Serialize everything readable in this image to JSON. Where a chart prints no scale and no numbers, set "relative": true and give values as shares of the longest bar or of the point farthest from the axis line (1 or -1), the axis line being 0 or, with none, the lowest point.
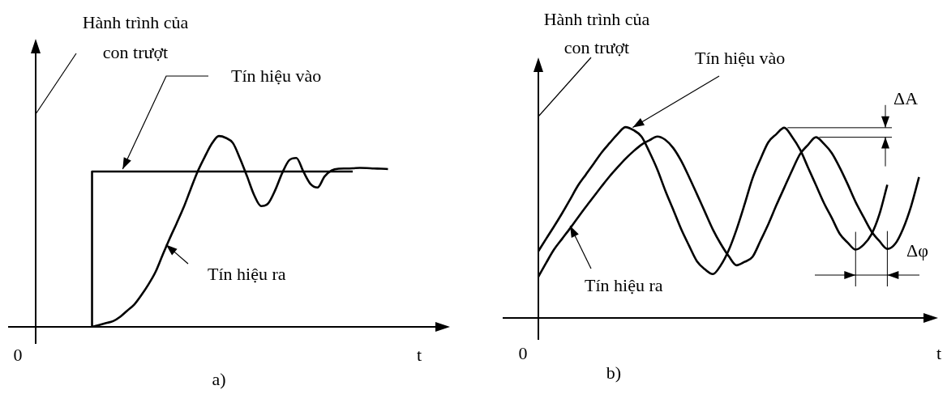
{
  "chart_data": [
    {
      "type": "line",
      "relative": true,
      "subtitle": "a)",
      "xlabel": "t",
      "ylabel": "Hành trình của con trượt",
      "legend": false,
      "annotations": [
        "0"
      ],
      "categories": [
        null,
        null,
        null,
        null,
        null,
        null,
        null,
        null,
        null,
        null,
        null,
        null,
        null,
        null,
        null,
        null,
        null,
        null,
        null,
        null,
        null,
        null,
        null,
        null,
        null,
        null,
        null,
        null,
        null,
        null,
        null,
        null,
        null,
        null,
        null,
        null,
        null,
        null,
        null,
        null,
        null,
        null,
        null,
        null,
        null,
        null,
        null,
        null,
        null,
        null,
        null
      ],
      "series": [
        {
          "name": "Tín hiệu vào",
          "type": "step",
          "color": "#000000",
          "values": [
            null,
            null,
            null,
            null,
            null,
            null,
            null,
            null,
            0,
            0.814,
            0.814,
            0.814,
            0.814,
            0.814,
            0.814,
            0.814,
            0.814,
            0.814,
            0.814,
            0.814,
            0.814,
            0.814,
            0.814,
            0.814,
            0.814,
            0.814,
            0.814,
            0.814,
            0.814,
            0.814,
            0.814,
            0.814,
            0.814,
            0.814,
            0.814,
            0.814,
            0.814,
            0.814,
            0.814,
            0.814,
            0.814,
            0.814,
            0.814,
            0.814,
            0.814,
            0.814,
            null,
            null,
            null,
            null,
            null
          ]
        },
        {
          "name": "Tín hiệu ra",
          "color": "#000000",
          "values": [
            null,
            null,
            null,
            null,
            null,
            null,
            null,
            null,
            0,
            0.01,
            0.02,
            0.03,
            0.053,
            0.085,
            0.117,
            0.166,
            0.222,
            0.287,
            0.375,
            0.461,
            0.542,
            0.626,
            0.722,
            0.815,
            0.891,
            0.96,
            1,
            0.99,
            0.963,
            0.882,
            0.789,
            0.691,
            0.633,
            0.647,
            0.717,
            0.807,
            0.874,
            0.885,
            0.813,
            0.749,
            0.73,
            0.788,
            0.82,
            0.829,
            0.83,
            0.831,
            0.833,
            0.832,
            0.83,
            0.829,
            0.827
          ]
        }
      ]
    },
    {
      "type": "line",
      "relative": true,
      "subtitle": "b)",
      "xlabel": "t",
      "ylabel": "Hành trình của con trượt",
      "legend": false,
      "annotations": [
        "0",
        "ΔA",
        "Δφ"
      ],
      "categories": [
        null,
        null,
        null,
        null,
        null,
        null,
        null,
        null,
        null,
        null,
        null,
        null,
        null,
        null,
        null,
        null,
        null,
        null,
        null,
        null,
        null,
        null,
        null,
        null,
        null,
        null,
        null,
        null,
        null,
        null,
        null,
        null,
        null,
        null,
        null,
        null,
        null,
        null,
        null,
        null,
        null,
        null,
        null,
        null,
        null,
        null,
        null,
        null,
        null
      ],
      "series": [
        {
          "name": "Tín hiệu vào",
          "color": "#000000",
          "values": [
            0.35,
            0.416,
            0.481,
            0.549,
            0.621,
            0.694,
            0.752,
            0.81,
            0.868,
            0.917,
            0.964,
            1,
            0.984,
            0.951,
            0.87,
            0.778,
            0.668,
            0.568,
            0.466,
            0.379,
            0.297,
            0.255,
            0.23,
            0.276,
            0.355,
            0.465,
            0.595,
            0.731,
            0.832,
            0.921,
            0.963,
            0.997,
            0.949,
            0.882,
            0.789,
            0.696,
            0.603,
            0.524,
            0.441,
            0.395,
            0.358,
            0.383,
            0.438,
            0.543,
            0.698,
            null,
            null,
            null,
            null
          ]
        },
        {
          "name": "Tín hiệu ra",
          "color": "#000000",
          "values": [
            0.216,
            0.29,
            0.36,
            0.415,
            0.47,
            0.527,
            0.583,
            0.637,
            0.691,
            0.743,
            0.79,
            0.835,
            0.874,
            0.908,
            0.931,
            0.951,
            0.934,
            0.891,
            0.824,
            0.739,
            0.648,
            0.556,
            0.464,
            0.388,
            0.324,
            0.276,
            0.294,
            0.32,
            0.404,
            0.492,
            0.59,
            0.682,
            0.774,
            0.859,
            0.907,
            0.947,
            0.913,
            0.864,
            0.788,
            0.701,
            0.608,
            0.529,
            0.454,
            0.403,
            0.362,
            0.389,
            0.469,
            0.586,
            0.738
          ]
        }
      ]
    }
  ]
}
